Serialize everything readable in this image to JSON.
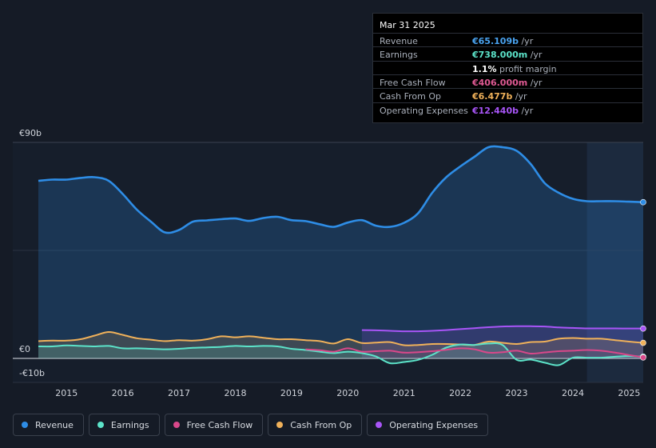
{
  "tooltip": {
    "date": "Mar 31 2025",
    "rows": [
      {
        "label": "Revenue",
        "value": "€65.109b",
        "unit": " /yr",
        "color": "#4aa3f0"
      },
      {
        "label": "Earnings",
        "value": "€738.000m",
        "unit": " /yr",
        "color": "#5ce3c9"
      },
      {
        "label": "",
        "value": "1.1%",
        "unit": " profit margin",
        "color": "#ffffff"
      },
      {
        "label": "Free Cash Flow",
        "value": "€406.000m",
        "unit": " /yr",
        "color": "#e05a94"
      },
      {
        "label": "Cash From Op",
        "value": "€6.477b",
        "unit": " /yr",
        "color": "#f0b15a"
      },
      {
        "label": "Operating Expenses",
        "value": "€12.440b",
        "unit": " /yr",
        "color": "#a855f7"
      }
    ]
  },
  "legend": [
    {
      "label": "Revenue",
      "color": "#2e8de6"
    },
    {
      "label": "Earnings",
      "color": "#5ce3c9"
    },
    {
      "label": "Free Cash Flow",
      "color": "#d9488a"
    },
    {
      "label": "Cash From Op",
      "color": "#f0b15a"
    },
    {
      "label": "Operating Expenses",
      "color": "#a855f7"
    }
  ],
  "chart_data": {
    "type": "area",
    "title": "",
    "xlabel": "",
    "ylabel": "",
    "y_tick_labels": [
      "€90b",
      "€0",
      "-€10b"
    ],
    "ylim": [
      -10,
      90
    ],
    "xlim": [
      2014.5,
      2025.25
    ],
    "x_ticks": [
      2015,
      2016,
      2017,
      2018,
      2019,
      2020,
      2021,
      2022,
      2023,
      2024,
      2025
    ],
    "x_tick_labels": [
      "2015",
      "2016",
      "2017",
      "2018",
      "2019",
      "2020",
      "2021",
      "2022",
      "2023",
      "2024",
      "2025"
    ],
    "highlight_from": 2024.25,
    "series": [
      {
        "name": "Revenue",
        "color": "#2e8de6",
        "fill": true,
        "x": [
          2014.5,
          2014.75,
          2015.0,
          2015.25,
          2015.5,
          2015.75,
          2016.0,
          2016.25,
          2016.5,
          2016.75,
          2017.0,
          2017.25,
          2017.5,
          2017.75,
          2018.0,
          2018.25,
          2018.5,
          2018.75,
          2019.0,
          2019.25,
          2019.5,
          2019.75,
          2020.0,
          2020.25,
          2020.5,
          2020.75,
          2021.0,
          2021.25,
          2021.5,
          2021.75,
          2022.0,
          2022.25,
          2022.5,
          2022.75,
          2023.0,
          2023.25,
          2023.5,
          2023.75,
          2024.0,
          2024.25,
          2024.5,
          2024.75,
          2025.0,
          2025.25
        ],
        "y": [
          74.0,
          74.5,
          74.5,
          75.2,
          75.5,
          74.0,
          68.5,
          62.0,
          57.0,
          52.5,
          53.5,
          57.0,
          57.5,
          58.0,
          58.3,
          57.3,
          58.5,
          59.0,
          57.6,
          57.2,
          55.9,
          54.8,
          56.6,
          57.6,
          55.3,
          54.8,
          56.5,
          60.5,
          69.0,
          75.5,
          80.0,
          84.0,
          88.0,
          88.0,
          86.5,
          81.0,
          73.0,
          69.0,
          66.5,
          65.5,
          65.5,
          65.5,
          65.3,
          65.1
        ]
      },
      {
        "name": "Operating Expenses",
        "color": "#a855f7",
        "fill": true,
        "x": [
          2020.25,
          2020.5,
          2020.75,
          2021.0,
          2021.25,
          2021.5,
          2021.75,
          2022.0,
          2022.25,
          2022.5,
          2022.75,
          2023.0,
          2023.25,
          2023.5,
          2023.75,
          2024.0,
          2024.25,
          2024.5,
          2024.75,
          2025.0,
          2025.25
        ],
        "y": [
          11.8,
          11.7,
          11.5,
          11.3,
          11.3,
          11.5,
          11.8,
          12.2,
          12.6,
          13.0,
          13.3,
          13.4,
          13.4,
          13.3,
          12.9,
          12.7,
          12.5,
          12.5,
          12.5,
          12.45,
          12.44
        ]
      },
      {
        "name": "Cash From Op",
        "color": "#f0b15a",
        "fill": true,
        "x": [
          2014.5,
          2014.75,
          2015.0,
          2015.25,
          2015.5,
          2015.75,
          2016.0,
          2016.25,
          2016.5,
          2016.75,
          2017.0,
          2017.25,
          2017.5,
          2017.75,
          2018.0,
          2018.25,
          2018.5,
          2018.75,
          2019.0,
          2019.25,
          2019.5,
          2019.75,
          2020.0,
          2020.25,
          2020.5,
          2020.75,
          2021.0,
          2021.25,
          2021.5,
          2021.75,
          2022.0,
          2022.25,
          2022.5,
          2022.75,
          2023.0,
          2023.25,
          2023.5,
          2023.75,
          2024.0,
          2024.25,
          2024.5,
          2024.75,
          2025.0,
          2025.25
        ],
        "y": [
          7.2,
          7.4,
          7.4,
          8.0,
          9.5,
          11.0,
          9.8,
          8.4,
          7.8,
          7.2,
          7.6,
          7.4,
          8.0,
          9.2,
          8.8,
          9.2,
          8.6,
          8.0,
          8.0,
          7.6,
          7.2,
          6.2,
          8.0,
          6.4,
          6.6,
          6.8,
          5.5,
          5.6,
          6.0,
          6.0,
          5.8,
          5.6,
          7.0,
          6.5,
          6.0,
          6.8,
          7.0,
          8.2,
          8.5,
          8.2,
          8.2,
          7.6,
          7.0,
          6.48
        ]
      },
      {
        "name": "Earnings",
        "color": "#5ce3c9",
        "fill": true,
        "x": [
          2014.5,
          2014.75,
          2015.0,
          2015.25,
          2015.5,
          2015.75,
          2016.0,
          2016.25,
          2016.5,
          2016.75,
          2017.0,
          2017.25,
          2017.5,
          2017.75,
          2018.0,
          2018.25,
          2018.5,
          2018.75,
          2019.0,
          2019.25,
          2019.5,
          2019.75,
          2020.0,
          2020.25,
          2020.5,
          2020.75,
          2021.0,
          2021.25,
          2021.5,
          2021.75,
          2022.0,
          2022.25,
          2022.5,
          2022.75,
          2023.0,
          2023.25,
          2023.5,
          2023.75,
          2024.0,
          2024.25,
          2024.5,
          2024.75,
          2025.0,
          2025.25
        ],
        "y": [
          5.0,
          5.0,
          5.4,
          5.2,
          5.0,
          5.2,
          4.2,
          4.2,
          4.0,
          3.8,
          4.0,
          4.4,
          4.6,
          4.8,
          5.2,
          5.0,
          5.2,
          5.0,
          4.0,
          3.5,
          2.8,
          2.2,
          2.8,
          2.2,
          0.8,
          -2.0,
          -1.5,
          -0.6,
          1.5,
          4.5,
          5.8,
          5.6,
          6.2,
          5.6,
          -0.6,
          -0.5,
          -1.8,
          -2.8,
          0.3,
          0.3,
          0.3,
          0.7,
          1.0,
          0.74
        ]
      },
      {
        "name": "Free Cash Flow",
        "color": "#d9488a",
        "fill": false,
        "x": [
          2019.25,
          2019.5,
          2019.75,
          2020.0,
          2020.25,
          2020.5,
          2020.75,
          2021.0,
          2021.25,
          2021.5,
          2021.75,
          2022.0,
          2022.25,
          2022.5,
          2022.75,
          2023.0,
          2023.25,
          2023.5,
          2023.75,
          2024.0,
          2024.25,
          2024.5,
          2024.75,
          2025.0,
          2025.25
        ],
        "y": [
          3.8,
          3.4,
          2.8,
          4.2,
          2.8,
          3.0,
          3.2,
          2.4,
          2.6,
          3.0,
          3.6,
          4.2,
          3.8,
          2.4,
          2.6,
          3.2,
          2.0,
          2.5,
          3.0,
          3.2,
          3.5,
          3.2,
          2.4,
          1.4,
          0.41
        ]
      }
    ]
  }
}
